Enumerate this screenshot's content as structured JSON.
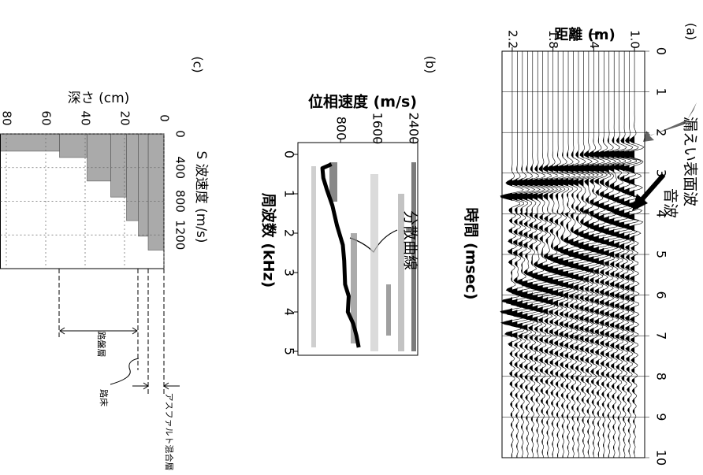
{
  "chart_data": [
    {
      "type": "seismic",
      "panel_label": "(a)",
      "xlabel": "時間 (msec)",
      "ylabel": "距離 (m)",
      "xlim": [
        0,
        10
      ],
      "xticks": [
        0,
        1,
        2,
        3,
        4,
        5,
        6,
        7,
        8,
        9,
        10
      ],
      "ylim": [
        0.9,
        2.3
      ],
      "yticks": [
        2.2,
        1.8,
        1.4,
        {
          "value": 1,
          "label": "1.0"
        }
      ],
      "annotations": [
        "漏えい表面波",
        "音波"
      ]
    },
    {
      "type": "line",
      "panel_label": "(b)",
      "xlabel": "周波数 (kHz)",
      "ylabel": "位相速度 (m/s)",
      "xlim": [
        -0.3,
        5.1
      ],
      "xticks": [
        0,
        1,
        2,
        3,
        4,
        5
      ],
      "ylim": [
        -140,
        2500
      ],
      "yticks": [
        800,
        1600,
        2400
      ],
      "x": [
        0.25,
        0.35,
        0.6,
        0.9,
        1.3,
        1.8,
        2.3,
        2.7,
        3.3,
        3.6,
        4.0,
        4.3,
        4.6,
        4.9
      ],
      "values": [
        600,
        400,
        420,
        500,
        620,
        720,
        850,
        880,
        900,
        980,
        960,
        1080,
        1150,
        1200
      ],
      "color": "#000000",
      "annotations": [
        "分散曲線"
      ]
    },
    {
      "type": "step-area",
      "panel_label": "(c)",
      "xlabel": "S 波速度 (m/s)",
      "ylabel": "深さ (cm)",
      "xlim": [
        0,
        1600
      ],
      "xticks": [
        0,
        400,
        800,
        1200
      ],
      "ylim": [
        0,
        83
      ],
      "yticks": [
        0,
        20,
        40,
        60,
        80
      ],
      "layer_depths": [
        0,
        8,
        13,
        19,
        27,
        39,
        53,
        83
      ],
      "values": [
        1380,
        1215,
        1030,
        750,
        560,
        280,
        205
      ],
      "color": "#aaaaaa",
      "grid": true,
      "annotations": [
        "アスファルト混合層",
        "路床",
        "路盤層"
      ]
    }
  ]
}
